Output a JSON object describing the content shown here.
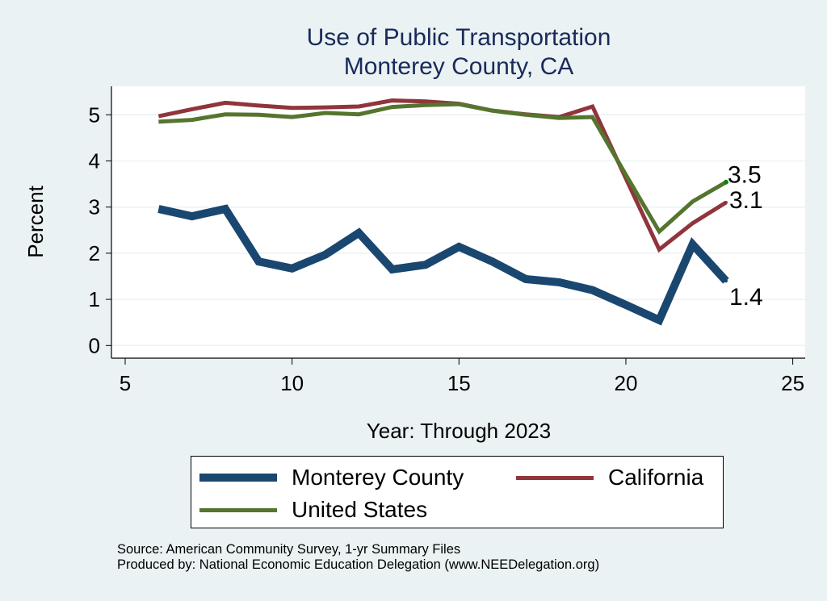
{
  "chart_data": {
    "type": "line",
    "title": "Use of Public Transportation",
    "subtitle": "Monterey County, CA",
    "xlabel": "Year: Through 2023",
    "ylabel": "Percent",
    "xlim": [
      5,
      25
    ],
    "ylim": [
      0,
      5.5
    ],
    "xticks": [
      5,
      10,
      15,
      20,
      25
    ],
    "yticks": [
      0,
      1,
      2,
      3,
      4,
      5
    ],
    "grid": "horizontal",
    "legend": "bottom",
    "x": [
      6,
      7,
      8,
      9,
      10,
      11,
      12,
      13,
      14,
      15,
      16,
      17,
      18,
      19,
      20,
      21,
      22,
      23
    ],
    "series": [
      {
        "name": "Monterey County",
        "color": "#1a476f",
        "width": 10,
        "values": [
          2.96,
          2.8,
          2.96,
          1.82,
          1.67,
          1.97,
          2.44,
          1.65,
          1.75,
          2.14,
          1.82,
          1.44,
          1.37,
          1.2,
          0.88,
          0.55,
          2.19,
          1.4
        ],
        "end_label": "1.4"
      },
      {
        "name": "California",
        "color": "#90353b",
        "width": 5,
        "values": [
          4.97,
          5.12,
          5.26,
          5.2,
          5.15,
          5.16,
          5.18,
          5.31,
          5.29,
          5.24,
          5.09,
          5.01,
          4.95,
          5.18,
          3.62,
          2.08,
          2.65,
          3.1
        ],
        "end_label": "3.1"
      },
      {
        "name": "United States",
        "color": "#55752f",
        "width": 5,
        "values": [
          4.85,
          4.89,
          5.01,
          5.0,
          4.95,
          5.04,
          5.01,
          5.17,
          5.21,
          5.23,
          5.09,
          5.0,
          4.93,
          4.95,
          3.7,
          2.47,
          3.12,
          3.54
        ],
        "end_label": "3.5"
      }
    ]
  },
  "notes": {
    "source": "Source: American Community Survey, 1-yr Summary Files",
    "produced": "Produced by: National Economic Education Delegation (www.NEEDelegation.org)"
  }
}
